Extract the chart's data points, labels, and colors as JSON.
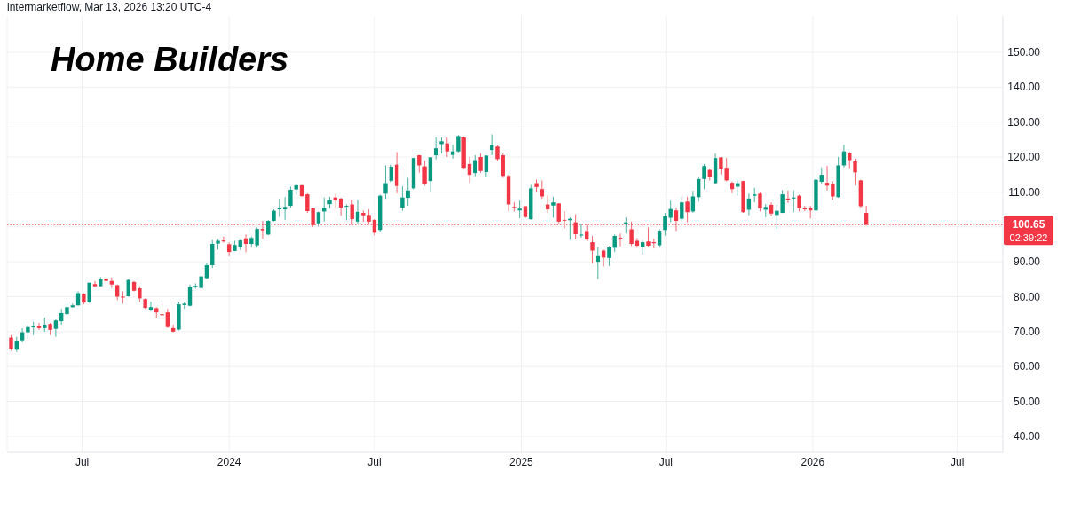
{
  "chart_data": {
    "type": "candlestick",
    "title": "Home Builders",
    "annotations": [
      "intermarketflow, Mar 13, 2026 13:20 UTC-4",
      "02:39:22"
    ],
    "x": [
      "2023-04-03",
      "2023-04-10",
      "2023-04-17",
      "2023-04-24",
      "2023-05-01",
      "2023-05-08",
      "2023-05-15",
      "2023-05-22",
      "2023-05-29",
      "2023-06-05",
      "2023-06-12",
      "2023-06-19",
      "2023-06-26",
      "2023-07-03",
      "2023-07-10",
      "2023-07-17",
      "2023-07-24",
      "2023-07-31",
      "2023-08-07",
      "2023-08-14",
      "2023-08-21",
      "2023-08-28",
      "2023-09-04",
      "2023-09-11",
      "2023-09-18",
      "2023-09-25",
      "2023-10-02",
      "2023-10-09",
      "2023-10-16",
      "2023-10-23",
      "2023-10-30",
      "2023-11-06",
      "2023-11-13",
      "2023-11-20",
      "2023-11-27",
      "2023-12-04",
      "2023-12-11",
      "2023-12-18",
      "2023-12-25",
      "2024-01-01",
      "2024-01-08",
      "2024-01-15",
      "2024-01-22",
      "2024-01-29",
      "2024-02-05",
      "2024-02-12",
      "2024-02-19",
      "2024-02-26",
      "2024-03-04",
      "2024-03-11",
      "2024-03-18",
      "2024-03-25",
      "2024-04-01",
      "2024-04-08",
      "2024-04-15",
      "2024-04-22",
      "2024-04-29",
      "2024-05-06",
      "2024-05-13",
      "2024-05-20",
      "2024-05-27",
      "2024-06-03",
      "2024-06-10",
      "2024-06-17",
      "2024-06-24",
      "2024-07-01",
      "2024-07-08",
      "2024-07-15",
      "2024-07-22",
      "2024-07-29",
      "2024-08-05",
      "2024-08-12",
      "2024-08-19",
      "2024-08-26",
      "2024-09-02",
      "2024-09-09",
      "2024-09-16",
      "2024-09-23",
      "2024-09-30",
      "2024-10-07",
      "2024-10-14",
      "2024-10-21",
      "2024-10-28",
      "2024-11-04",
      "2024-11-11",
      "2024-11-18",
      "2024-11-25",
      "2024-12-02",
      "2024-12-09",
      "2024-12-16",
      "2024-12-23",
      "2024-12-30",
      "2025-01-06",
      "2025-01-13",
      "2025-01-20",
      "2025-01-27",
      "2025-02-03",
      "2025-02-10",
      "2025-02-17",
      "2025-02-24",
      "2025-03-03",
      "2025-03-10",
      "2025-03-17",
      "2025-03-24",
      "2025-03-31",
      "2025-04-07",
      "2025-04-14",
      "2025-04-21",
      "2025-04-28",
      "2025-05-05",
      "2025-05-12",
      "2025-05-19",
      "2025-05-26",
      "2025-06-02",
      "2025-06-09",
      "2025-06-16",
      "2025-06-23",
      "2025-06-30",
      "2025-07-07",
      "2025-07-14",
      "2025-07-21",
      "2025-07-28",
      "2025-08-04",
      "2025-08-11",
      "2025-08-18",
      "2025-08-25",
      "2025-09-01",
      "2025-09-08",
      "2025-09-15",
      "2025-09-22",
      "2025-09-29",
      "2025-10-06",
      "2025-10-13",
      "2025-10-20",
      "2025-10-27",
      "2025-11-03",
      "2025-11-10",
      "2025-11-17",
      "2025-11-24",
      "2025-12-01",
      "2025-12-08",
      "2025-12-15",
      "2025-12-22",
      "2025-12-29",
      "2026-01-05",
      "2026-01-12",
      "2026-01-19",
      "2026-01-26",
      "2026-02-02",
      "2026-02-09",
      "2026-02-16",
      "2026-02-23",
      "2026-03-02",
      "2026-03-09"
    ],
    "ohlc": [
      [
        68.3,
        69,
        64.5,
        65
      ],
      [
        64.8,
        68.5,
        64.2,
        67.4
      ],
      [
        67.5,
        71,
        67,
        69.8
      ],
      [
        69.8,
        72,
        68,
        71.3
      ],
      [
        71.2,
        72.8,
        69,
        71.5
      ],
      [
        71.5,
        72.5,
        70.5,
        71
      ],
      [
        71,
        74,
        70,
        72
      ],
      [
        72.2,
        72.5,
        69,
        70.5
      ],
      [
        70.8,
        73.5,
        68.5,
        73.2
      ],
      [
        73,
        76.5,
        72,
        75.3
      ],
      [
        75,
        78,
        74.7,
        77
      ],
      [
        77,
        78,
        76.8,
        77.5
      ],
      [
        77.5,
        81.5,
        77.5,
        81
      ],
      [
        80.8,
        81,
        77.8,
        78.3
      ],
      [
        78.4,
        84,
        78.2,
        84
      ],
      [
        83.6,
        84.5,
        82.8,
        83
      ],
      [
        83,
        85.6,
        83,
        85
      ],
      [
        85.2,
        85.7,
        84,
        84.5
      ],
      [
        84.5,
        85.5,
        82.5,
        83.5
      ],
      [
        83.3,
        83.5,
        79,
        80
      ],
      [
        80,
        81.5,
        78,
        79.8
      ],
      [
        80.1,
        85,
        80,
        84.8
      ],
      [
        84.2,
        84.5,
        81.5,
        81.7
      ],
      [
        82.4,
        83,
        78.5,
        79.5
      ],
      [
        79.3,
        79.5,
        76.5,
        76.8
      ],
      [
        76.2,
        78.5,
        75.8,
        77
      ],
      [
        76.7,
        77,
        73.8,
        75.5
      ],
      [
        75,
        77.9,
        74.5,
        74.7
      ],
      [
        75.5,
        76.5,
        71,
        71.3
      ],
      [
        71,
        72,
        69.8,
        70
      ],
      [
        70.6,
        78.5,
        70.3,
        77.8
      ],
      [
        77.6,
        78.5,
        76.5,
        78
      ],
      [
        77.4,
        83.5,
        77.2,
        82.8
      ],
      [
        82.8,
        83.8,
        82.3,
        83.1
      ],
      [
        82.5,
        86,
        82,
        85.8
      ],
      [
        85.3,
        89.6,
        85,
        89
      ],
      [
        89,
        96.2,
        88.2,
        95.1
      ],
      [
        95.2,
        96.5,
        93.5,
        96
      ],
      [
        96.1,
        97.2,
        95.5,
        95.8
      ],
      [
        95,
        95.5,
        91.6,
        92.8
      ],
      [
        93.1,
        96,
        93,
        94.8
      ],
      [
        94.2,
        96.3,
        93.4,
        96.1
      ],
      [
        96.7,
        97.8,
        92.7,
        95.1
      ],
      [
        95.1,
        97.2,
        94.4,
        96.8
      ],
      [
        94.7,
        99.8,
        94,
        99.4
      ],
      [
        99.4,
        101.7,
        96.6,
        99
      ],
      [
        97.8,
        102,
        97.6,
        101.7
      ],
      [
        101.7,
        105,
        101.5,
        104.6
      ],
      [
        105,
        108.1,
        102.8,
        105.4
      ],
      [
        105,
        108.5,
        102,
        105.7
      ],
      [
        106,
        111.5,
        105.5,
        110.6
      ],
      [
        110.7,
        112.1,
        109.2,
        111.9
      ],
      [
        111.9,
        112,
        108.5,
        108.8
      ],
      [
        109.3,
        109.6,
        104,
        104.5
      ],
      [
        105.3,
        105.5,
        100,
        100.5
      ],
      [
        101,
        104.5,
        100,
        104.2
      ],
      [
        104.4,
        108.4,
        101.5,
        105.4
      ],
      [
        106.5,
        108.6,
        105.3,
        107.7
      ],
      [
        108.4,
        109.5,
        105.5,
        107.6
      ],
      [
        108.1,
        108.3,
        103.2,
        105.5
      ],
      [
        105.8,
        106.4,
        101.9,
        106
      ],
      [
        106.4,
        107.7,
        100.8,
        102.2
      ],
      [
        101.5,
        107.7,
        100.9,
        104.3
      ],
      [
        104,
        104.7,
        101.4,
        103.3
      ],
      [
        103.4,
        105,
        100.8,
        101.5
      ],
      [
        102,
        102.2,
        97.5,
        98.3
      ],
      [
        99.1,
        109.2,
        98.5,
        108.9
      ],
      [
        109.5,
        117.6,
        108,
        112.5
      ],
      [
        113.2,
        117.8,
        112.8,
        117.2
      ],
      [
        117.8,
        121.4,
        109.6,
        111.7
      ],
      [
        105.5,
        111.6,
        104.6,
        108.4
      ],
      [
        108.3,
        114,
        106,
        110.4
      ],
      [
        111,
        119.8,
        110.7,
        119.7
      ],
      [
        120.5,
        120.6,
        115.5,
        117.6
      ],
      [
        117.3,
        119,
        111.8,
        112.2
      ],
      [
        113.1,
        120,
        110.1,
        119.9
      ],
      [
        120.5,
        125.6,
        119.3,
        122.5
      ],
      [
        123.7,
        125.6,
        121,
        124.5
      ],
      [
        123.9,
        125.5,
        120,
        121.6
      ],
      [
        120.6,
        123.5,
        119.5,
        121.6
      ],
      [
        121.6,
        126.3,
        121.3,
        126
      ],
      [
        125.6,
        125.8,
        116.5,
        116.9
      ],
      [
        118,
        120,
        112.5,
        114.9
      ],
      [
        115.4,
        120.5,
        114.5,
        119.1
      ],
      [
        120,
        121,
        115.5,
        116
      ],
      [
        115.7,
        120.5,
        114.2,
        120.4
      ],
      [
        122,
        126.5,
        120.5,
        123.3
      ],
      [
        123,
        123.3,
        118.8,
        119.4
      ],
      [
        120.5,
        121,
        114,
        114.6
      ],
      [
        114.6,
        115,
        104.4,
        106.4
      ],
      [
        105.7,
        107.1,
        104.4,
        105.4
      ],
      [
        104.7,
        107.5,
        102.5,
        105.2
      ],
      [
        105.9,
        106,
        102.5,
        102.8
      ],
      [
        102.2,
        112,
        102,
        111
      ],
      [
        112.5,
        113.5,
        110,
        111.4
      ],
      [
        110.8,
        113.3,
        108,
        108.7
      ],
      [
        106.4,
        109,
        104,
        105
      ],
      [
        106.1,
        108.6,
        102.6,
        107
      ],
      [
        106.7,
        106.8,
        101,
        101.5
      ],
      [
        102,
        104.5,
        99.5,
        101.8
      ],
      [
        101.9,
        102.7,
        96.3,
        102.3
      ],
      [
        101.3,
        103.6,
        96.4,
        97.9
      ],
      [
        97.5,
        100.8,
        96.9,
        97.8
      ],
      [
        98.8,
        100.6,
        96,
        96.4
      ],
      [
        95.6,
        97.4,
        89.6,
        93.2
      ],
      [
        90,
        94.2,
        85,
        91.6
      ],
      [
        93.2,
        93.5,
        88.6,
        91.2
      ],
      [
        91.1,
        94.5,
        88.8,
        94.1
      ],
      [
        94,
        97.8,
        92.8,
        97.4
      ],
      [
        96.9,
        98.1,
        94.4,
        96.7
      ],
      [
        100.8,
        102.7,
        98.1,
        101.3
      ],
      [
        99.3,
        101.5,
        94.5,
        95.1
      ],
      [
        96,
        96.8,
        94,
        94.6
      ],
      [
        94.2,
        96,
        92.1,
        95.6
      ],
      [
        95.8,
        99.8,
        94.3,
        94.6
      ],
      [
        95.6,
        96.6,
        93.8,
        95.3
      ],
      [
        94.7,
        99.4,
        94,
        98.9
      ],
      [
        99.1,
        104,
        97.5,
        103
      ],
      [
        102.6,
        107.5,
        101.3,
        105.1
      ],
      [
        104.7,
        105.5,
        98.8,
        101.7
      ],
      [
        102.3,
        108.7,
        101.6,
        107
      ],
      [
        107.2,
        108.6,
        101.3,
        104.2
      ],
      [
        104.4,
        110.3,
        104,
        108.7
      ],
      [
        108.5,
        114.3,
        107.2,
        113.7
      ],
      [
        113.7,
        118,
        110.8,
        117.4
      ],
      [
        116.3,
        116.7,
        113.3,
        114.2
      ],
      [
        112.5,
        121,
        112.3,
        119.7
      ],
      [
        119.9,
        120,
        115,
        116.7
      ],
      [
        116.9,
        119.7,
        113,
        113.3
      ],
      [
        112.6,
        113,
        109.6,
        110.8
      ],
      [
        111.5,
        113.5,
        108.9,
        112.5
      ],
      [
        113.1,
        113.2,
        104,
        104.2
      ],
      [
        104.9,
        109.5,
        103.3,
        108.1
      ],
      [
        108.9,
        111.2,
        107,
        109.3
      ],
      [
        109.5,
        110,
        104.4,
        105.3
      ],
      [
        104.9,
        106.5,
        102.7,
        105.7
      ],
      [
        106.3,
        107,
        103,
        103.8
      ],
      [
        103.4,
        106.2,
        99.4,
        104.6
      ],
      [
        104,
        110.5,
        103.9,
        109.3
      ],
      [
        108.1,
        110.4,
        106.8,
        107.8
      ],
      [
        108.1,
        110.5,
        104.2,
        108.4
      ],
      [
        108.9,
        109.2,
        104.4,
        105.3
      ],
      [
        105.5,
        106,
        104.5,
        105
      ],
      [
        105.3,
        106,
        102.4,
        104.7
      ],
      [
        104.7,
        113.6,
        103,
        113.5
      ],
      [
        112.9,
        117,
        112.4,
        114.9
      ],
      [
        112.6,
        117.5,
        110.4,
        111.8
      ],
      [
        112.3,
        113,
        107.8,
        108.7
      ],
      [
        108.5,
        120,
        108.3,
        117.6
      ],
      [
        117.6,
        123.5,
        117,
        121.6
      ],
      [
        121.1,
        121.5,
        116.8,
        119.1
      ],
      [
        118.8,
        119.5,
        111.9,
        115.6
      ],
      [
        113.3,
        113.5,
        105.5,
        105.9
      ],
      [
        104,
        106,
        100.3,
        100.65
      ]
    ],
    "xlim": [
      "2023-03-29",
      "2026-08-27"
    ],
    "xticks": [
      {
        "value": "2023-07-01",
        "label": "Jul"
      },
      {
        "value": "2024-01-01",
        "label": "2024"
      },
      {
        "value": "2024-07-01",
        "label": "Jul"
      },
      {
        "value": "2025-01-01",
        "label": "2025"
      },
      {
        "value": "2025-07-01",
        "label": "Jul"
      },
      {
        "value": "2026-01-01",
        "label": "2026"
      },
      {
        "value": "2026-07-01",
        "label": "Jul"
      }
    ],
    "ylim": [
      35.4,
      160.4
    ],
    "yticks": [
      {
        "value": 40,
        "label": "40.00"
      },
      {
        "value": 50,
        "label": "50.00"
      },
      {
        "value": 60,
        "label": "60.00"
      },
      {
        "value": 70,
        "label": "70.00"
      },
      {
        "value": 80,
        "label": "80.00"
      },
      {
        "value": 90,
        "label": "90.00"
      },
      {
        "value": 100,
        "label": null
      },
      {
        "value": 110,
        "label": "110.00"
      },
      {
        "value": 120,
        "label": "120.00"
      },
      {
        "value": 130,
        "label": "130.00"
      },
      {
        "value": 140,
        "label": "140.00"
      },
      {
        "value": 150,
        "label": "150.00"
      }
    ],
    "ref_lines": [
      {
        "axis": "y",
        "value": 100.65,
        "label": "100.65",
        "color": "#f23645",
        "line_style": "dotted"
      }
    ],
    "grid": true
  }
}
